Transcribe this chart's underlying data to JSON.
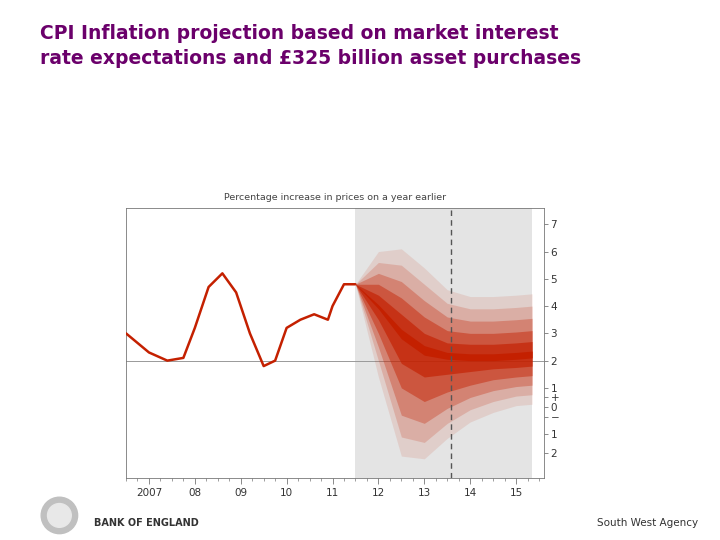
{
  "title": "CPI Inflation projection based on market interest\nrate expectations and £325 billion asset purchases",
  "title_color": "#6B006B",
  "subtitle": "Percentage increase in prices on a year earlier",
  "background_color": "#ffffff",
  "chart_bg": "#ffffff",
  "projection_bg": "#e4e4e4",
  "ylim": [
    -2.3,
    7.6
  ],
  "xlim_start": 2006.5,
  "xlim_end": 2015.6,
  "xtick_labels": [
    "2007",
    "08",
    "09",
    "10",
    "11",
    "12",
    "13",
    "14",
    "15"
  ],
  "xtick_values": [
    2007,
    2008,
    2009,
    2010,
    2011,
    2012,
    2013,
    2014,
    2015
  ],
  "ytick_labels": [
    "7",
    "6",
    "5",
    "4",
    "3",
    "2",
    "1",
    "+",
    "0",
    "−",
    "1",
    "2"
  ],
  "ytick_values": [
    7,
    6,
    5,
    4,
    3,
    2,
    1,
    0.65,
    0.3,
    -0.05,
    -0.7,
    -1.4
  ],
  "target_line_y": 2.0,
  "projection_start_x": 2011.5,
  "dashed_line_x": 2013.58,
  "projection_end_x": 2015.35,
  "historical_x": [
    2006.5,
    2007.0,
    2007.4,
    2007.75,
    2008.0,
    2008.3,
    2008.6,
    2008.9,
    2009.2,
    2009.5,
    2009.75,
    2010.0,
    2010.3,
    2010.6,
    2010.9,
    2011.0,
    2011.25,
    2011.5
  ],
  "historical_y": [
    3.0,
    2.3,
    2.0,
    2.1,
    3.2,
    4.7,
    5.2,
    4.5,
    3.0,
    1.8,
    2.0,
    3.2,
    3.5,
    3.7,
    3.5,
    4.0,
    4.8,
    4.8
  ],
  "fan_x": [
    2011.5,
    2012.0,
    2012.5,
    2013.0,
    2013.5,
    2014.0,
    2014.5,
    2015.0,
    2015.35
  ],
  "fan_bands": [
    {
      "alpha": 1.0,
      "color": "#c42000",
      "lo": [
        4.8,
        3.9,
        2.8,
        2.2,
        2.05,
        2.0,
        2.0,
        2.05,
        2.1
      ],
      "hi": [
        4.8,
        4.05,
        3.15,
        2.55,
        2.3,
        2.25,
        2.25,
        2.3,
        2.35
      ]
    },
    {
      "alpha": 0.65,
      "color": "#c42000",
      "lo": [
        4.8,
        3.5,
        1.9,
        1.4,
        1.5,
        1.6,
        1.7,
        1.75,
        1.8
      ],
      "hi": [
        4.8,
        4.4,
        3.7,
        3.0,
        2.65,
        2.6,
        2.6,
        2.65,
        2.7
      ]
    },
    {
      "alpha": 0.45,
      "color": "#c42000",
      "lo": [
        4.8,
        3.0,
        1.0,
        0.5,
        0.85,
        1.1,
        1.3,
        1.4,
        1.45
      ],
      "hi": [
        4.8,
        4.8,
        4.3,
        3.6,
        3.1,
        3.0,
        3.0,
        3.05,
        3.1
      ]
    },
    {
      "alpha": 0.3,
      "color": "#c42000",
      "lo": [
        4.8,
        2.5,
        0.0,
        -0.3,
        0.25,
        0.65,
        0.9,
        1.05,
        1.1
      ],
      "hi": [
        4.8,
        5.2,
        4.9,
        4.2,
        3.6,
        3.45,
        3.45,
        3.5,
        3.55
      ]
    },
    {
      "alpha": 0.18,
      "color": "#c42000",
      "lo": [
        4.8,
        2.0,
        -0.8,
        -1.0,
        -0.3,
        0.2,
        0.5,
        0.7,
        0.75
      ],
      "hi": [
        4.8,
        5.6,
        5.5,
        4.8,
        4.1,
        3.9,
        3.9,
        3.95,
        4.0
      ]
    },
    {
      "alpha": 0.11,
      "color": "#c42000",
      "lo": [
        4.8,
        1.4,
        -1.5,
        -1.6,
        -0.85,
        -0.25,
        0.1,
        0.35,
        0.4
      ],
      "hi": [
        4.8,
        6.0,
        6.1,
        5.4,
        4.6,
        4.35,
        4.35,
        4.4,
        4.45
      ]
    }
  ],
  "footer_text": "South West Agency",
  "bank_text": "BANK OF ENGLAND"
}
